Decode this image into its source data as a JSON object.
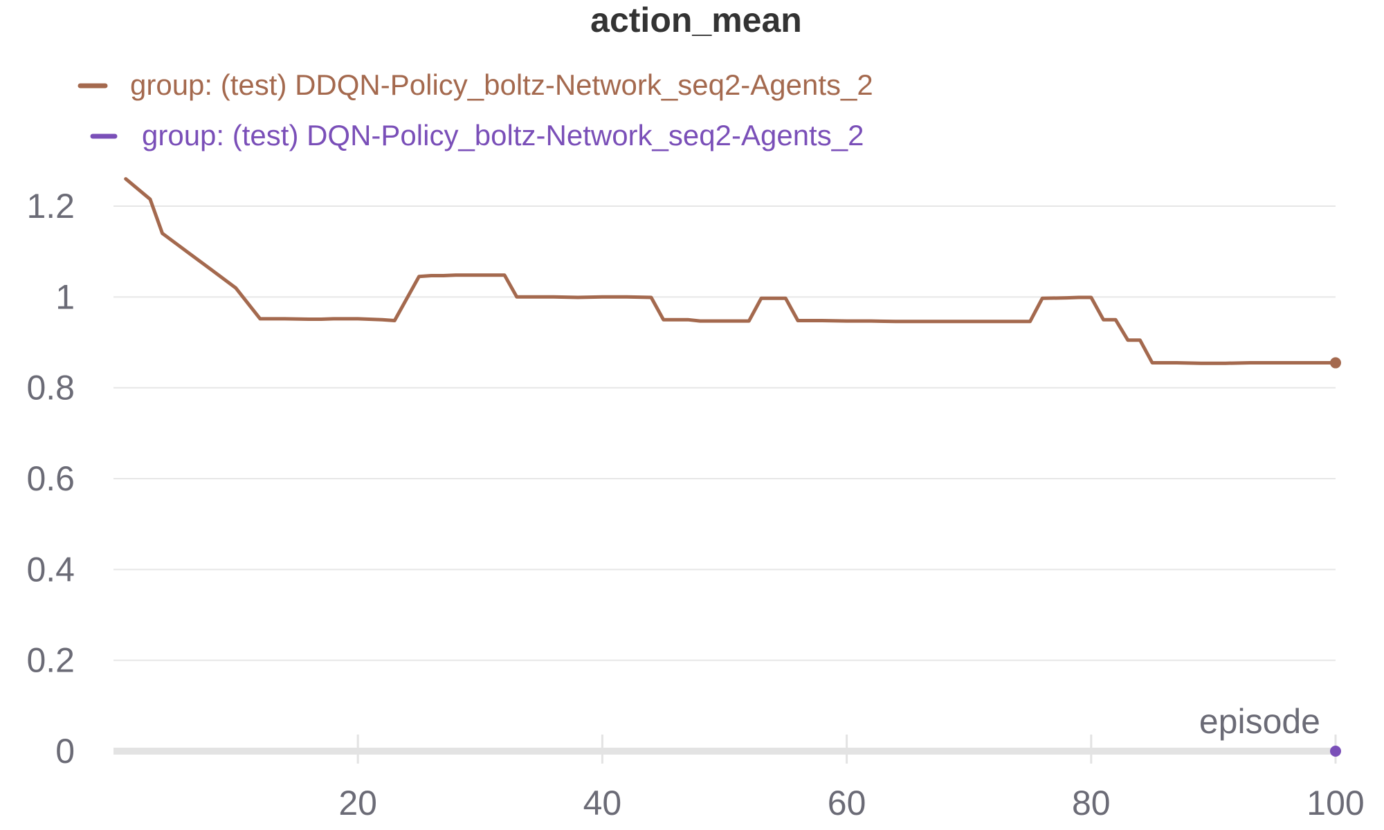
{
  "chart_data": {
    "type": "line",
    "title": "action_mean",
    "xlabel": "episode",
    "ylabel": "",
    "xlim": [
      0,
      100
    ],
    "ylim": [
      0,
      1.3
    ],
    "xticks": [
      20,
      40,
      60,
      80,
      100
    ],
    "yticks": [
      0,
      0.2,
      0.4,
      0.6,
      0.8,
      1,
      1.2
    ],
    "ytick_labels": [
      "0",
      "0.2",
      "0.4",
      "0.6",
      "0.8",
      "1",
      "1.2"
    ],
    "grid": true,
    "legend_position": "top-left",
    "series": [
      {
        "name": "group: (test) DDQN-Policy_boltz-Network_seq2-Agents_2",
        "color": "#a4694e",
        "x": [
          1,
          3,
          4,
          6,
          8,
          10,
          12,
          14,
          16,
          17,
          18,
          20,
          22,
          23,
          25,
          26,
          27,
          28,
          30,
          32,
          33,
          34,
          35,
          36,
          38,
          40,
          42,
          44,
          45,
          46,
          47,
          48,
          50,
          52,
          53,
          55,
          56,
          58,
          60,
          62,
          64,
          66,
          68,
          70,
          72,
          74,
          75,
          76,
          78,
          79,
          80,
          81,
          82,
          83,
          84,
          85,
          87,
          89,
          91,
          93,
          95,
          97,
          99,
          100
        ],
        "y": [
          1.26,
          1.215,
          1.14,
          1.1,
          1.06,
          1.02,
          0.952,
          0.952,
          0.951,
          0.951,
          0.952,
          0.952,
          0.95,
          0.948,
          1.045,
          1.047,
          1.047,
          1.048,
          1.048,
          1.048,
          1.0,
          1.0,
          1.0,
          1.0,
          0.999,
          1.0,
          1.0,
          0.999,
          0.95,
          0.95,
          0.95,
          0.947,
          0.947,
          0.947,
          0.997,
          0.997,
          0.948,
          0.948,
          0.947,
          0.947,
          0.946,
          0.946,
          0.946,
          0.946,
          0.946,
          0.946,
          0.946,
          0.997,
          0.998,
          0.999,
          0.999,
          0.95,
          0.95,
          0.905,
          0.905,
          0.855,
          0.855,
          0.854,
          0.854,
          0.855,
          0.855,
          0.855,
          0.855,
          0.855
        ]
      },
      {
        "name": "group: (test) DQN-Policy_boltz-Network_seq2-Agents_2",
        "color": "#7a4fb8",
        "x": [
          100
        ],
        "y": [
          0
        ]
      }
    ]
  }
}
